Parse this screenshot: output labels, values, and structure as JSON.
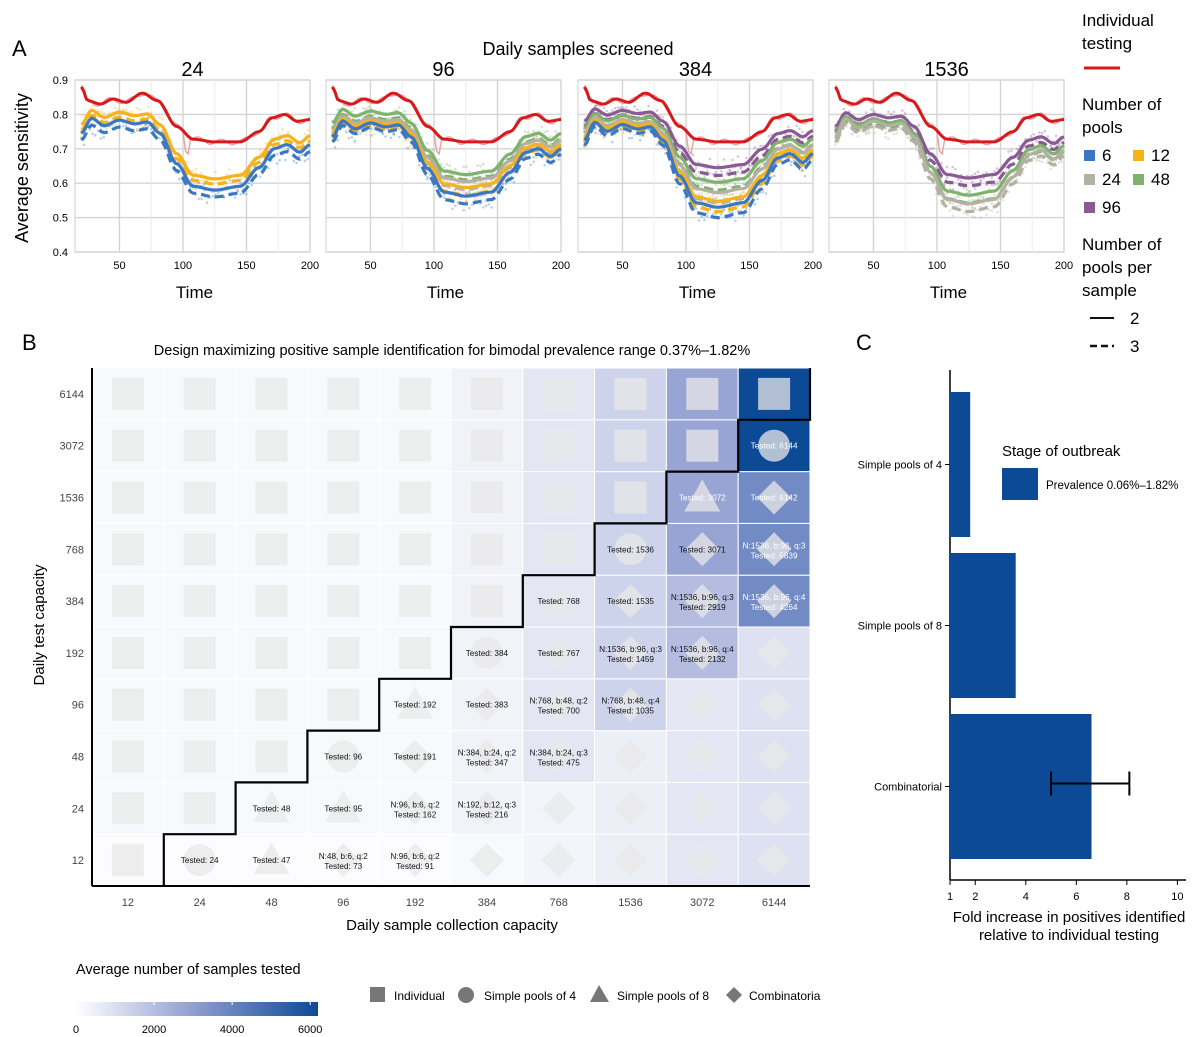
{
  "panel_labels": {
    "a": "A",
    "b": "B",
    "c": "C"
  },
  "panel_a": {
    "super_title": "Daily samples screened",
    "ylabel": "Average sensitivity",
    "xlabel": "Time",
    "facets": [
      "24",
      "96",
      "384",
      "1536"
    ],
    "yticks": [
      "0.4",
      "0.5",
      "0.6",
      "0.7",
      "0.8",
      "0.9"
    ],
    "xticks": [
      "50",
      "100",
      "150",
      "200"
    ],
    "legend": {
      "individual_title": "Individual testing",
      "pools_title": "Number of pools",
      "pools": [
        {
          "label": "6",
          "color": "#3a78c3"
        },
        {
          "label": "12",
          "color": "#f5b21b"
        },
        {
          "label": "24",
          "color": "#b4b0a4"
        },
        {
          "label": "48",
          "color": "#7eb26d"
        },
        {
          "label": "96",
          "color": "#8a5a94"
        }
      ],
      "per_sample_title": "Number of pools per sample",
      "per_sample": [
        "2",
        "3"
      ],
      "individual_color": "#d7191c"
    }
  },
  "panel_b": {
    "title": "Design maximizing positive sample identification for bimodal prevalence range 0.37%–1.82%",
    "xlabel": "Daily sample collection capacity",
    "ylabel": "Daily test capacity",
    "xcats": [
      "12",
      "24",
      "48",
      "96",
      "192",
      "384",
      "768",
      "1536",
      "3072",
      "6144"
    ],
    "ycats": [
      "12",
      "24",
      "48",
      "96",
      "192",
      "384",
      "768",
      "1536",
      "3072",
      "6144"
    ],
    "fill_legend_title": "Average number of samples tested",
    "fill_legend_ticks": [
      "0",
      "2000",
      "4000",
      "6000"
    ],
    "shape_legend": [
      "Individual",
      "Simple pools of 4",
      "Simple pools of 8",
      "Combinatoria"
    ],
    "cells": [
      {
        "x": 1,
        "y": 0,
        "l1": "Tested: 24",
        "l2": ""
      },
      {
        "x": 2,
        "y": 0,
        "l1": "Tested: 47",
        "l2": ""
      },
      {
        "x": 3,
        "y": 0,
        "l1": "N:48, b:6, q:2",
        "l2": "Tested: 73"
      },
      {
        "x": 4,
        "y": 0,
        "l1": "N:96, b:6, q:2",
        "l2": "Tested: 91"
      },
      {
        "x": 2,
        "y": 1,
        "l1": "Tested: 48",
        "l2": ""
      },
      {
        "x": 3,
        "y": 1,
        "l1": "Tested: 95",
        "l2": ""
      },
      {
        "x": 4,
        "y": 1,
        "l1": "N:96, b:6, q:2",
        "l2": "Tested: 162"
      },
      {
        "x": 5,
        "y": 1,
        "l1": "N:192, b:12, q:3",
        "l2": "Tested: 216"
      },
      {
        "x": 3,
        "y": 2,
        "l1": "Tested: 96",
        "l2": ""
      },
      {
        "x": 4,
        "y": 2,
        "l1": "Tested: 191",
        "l2": ""
      },
      {
        "x": 5,
        "y": 2,
        "l1": "N:384, b:24, q:2",
        "l2": "Tested: 347"
      },
      {
        "x": 6,
        "y": 2,
        "l1": "N:384, b:24, q:3",
        "l2": "Tested: 475"
      },
      {
        "x": 4,
        "y": 3,
        "l1": "Tested: 192",
        "l2": ""
      },
      {
        "x": 5,
        "y": 3,
        "l1": "Tested: 383",
        "l2": ""
      },
      {
        "x": 6,
        "y": 3,
        "l1": "N:768, b:48, q:2",
        "l2": "Tested: 700"
      },
      {
        "x": 7,
        "y": 3,
        "l1": "N:768, b:48, q:4",
        "l2": "Tested: 1035"
      },
      {
        "x": 5,
        "y": 4,
        "l1": "Tested: 384",
        "l2": ""
      },
      {
        "x": 6,
        "y": 4,
        "l1": "Tested: 767",
        "l2": ""
      },
      {
        "x": 7,
        "y": 4,
        "l1": "N:1536, b:96, q:3",
        "l2": "Tested: 1459"
      },
      {
        "x": 8,
        "y": 4,
        "l1": "N:1536, b:96, q:4",
        "l2": "Tested: 2132"
      },
      {
        "x": 6,
        "y": 5,
        "l1": "Tested: 768",
        "l2": ""
      },
      {
        "x": 7,
        "y": 5,
        "l1": "Tested: 1535",
        "l2": ""
      },
      {
        "x": 8,
        "y": 5,
        "l1": "N:1536, b:96, q:3",
        "l2": "Tested: 2919"
      },
      {
        "x": 9,
        "y": 5,
        "l1": "N:1536, b:96, q:4",
        "l2": "Tested: 4264"
      },
      {
        "x": 7,
        "y": 6,
        "l1": "Tested: 1536",
        "l2": ""
      },
      {
        "x": 8,
        "y": 6,
        "l1": "Tested: 3071",
        "l2": ""
      },
      {
        "x": 9,
        "y": 6,
        "l1": "N:1536, b:96, q:3",
        "l2": "Tested: 5839"
      },
      {
        "x": 8,
        "y": 7,
        "l1": "Tested: 3072",
        "l2": ""
      },
      {
        "x": 9,
        "y": 7,
        "l1": "Tested: 6142",
        "l2": ""
      },
      {
        "x": 9,
        "y": 8,
        "l1": "Tested: 6144",
        "l2": ""
      }
    ]
  },
  "panel_c": {
    "xlabel_1": "Fold increase in positives identified",
    "xlabel_2": "relative to individual testing",
    "legend_title": "Stage of outbreak",
    "legend_item": "Prevalence 0.06%–1.82%",
    "xticks": [
      "1",
      "2",
      "4",
      "6",
      "8",
      "10"
    ]
  },
  "chart_data": [
    {
      "type": "line",
      "title": "Daily samples screened",
      "xlabel": "Time",
      "ylabel": "Average sensitivity",
      "xlim": [
        15,
        200
      ],
      "ylim": [
        0.4,
        0.9
      ],
      "facets": [
        "24",
        "96",
        "384",
        "1536"
      ],
      "series": [
        {
          "name": "Individual testing",
          "x": [
            20,
            30,
            45,
            60,
            70,
            80,
            95,
            110,
            130,
            150,
            165,
            180,
            190,
            200
          ],
          "y": [
            0.88,
            0.83,
            0.84,
            0.85,
            0.86,
            0.84,
            0.77,
            0.73,
            0.72,
            0.72,
            0.76,
            0.8,
            0.79,
            0.78
          ]
        },
        {
          "name": "6",
          "x": [
            20,
            30,
            45,
            60,
            70,
            80,
            95,
            110,
            130,
            150,
            165,
            180,
            190,
            200
          ],
          "y": [
            0.72,
            0.74,
            0.73,
            0.75,
            0.74,
            0.72,
            0.64,
            0.58,
            0.57,
            0.57,
            0.62,
            0.67,
            0.66,
            0.66
          ]
        },
        {
          "name": "12",
          "x": [
            20,
            30,
            45,
            60,
            70,
            80,
            95,
            110,
            130,
            150,
            165,
            180,
            190,
            200
          ],
          "y": [
            0.79,
            0.76,
            0.77,
            0.78,
            0.77,
            0.75,
            0.68,
            0.61,
            0.61,
            0.61,
            0.65,
            0.71,
            0.7,
            0.7
          ]
        }
      ]
    },
    {
      "type": "heatmap",
      "title": "Design maximizing positive sample identification for bimodal prevalence range 0.37%–1.82%",
      "xlabel": "Daily sample collection capacity",
      "ylabel": "Daily test capacity",
      "categories": [
        "12",
        "24",
        "48",
        "96",
        "192",
        "384",
        "768",
        "1536",
        "3072",
        "6144"
      ],
      "y_categories": [
        "12",
        "24",
        "48",
        "96",
        "192",
        "384",
        "768",
        "1536",
        "3072",
        "6144"
      ],
      "color_range": [
        0,
        6000
      ]
    },
    {
      "type": "bar",
      "orientation": "horizontal",
      "xlabel": "Fold increase in positives identified relative to individual testing",
      "categories": [
        "Simple pools of 4",
        "Simple pools of 8",
        "Combinatorial"
      ],
      "values": [
        1.8,
        3.6,
        6.6
      ],
      "error": [
        null,
        null,
        [
          5.0,
          8.1
        ]
      ],
      "xlim": [
        1,
        10.5
      ],
      "color": "#0c4a96",
      "legend": "Prevalence 0.06%–1.82%"
    }
  ]
}
